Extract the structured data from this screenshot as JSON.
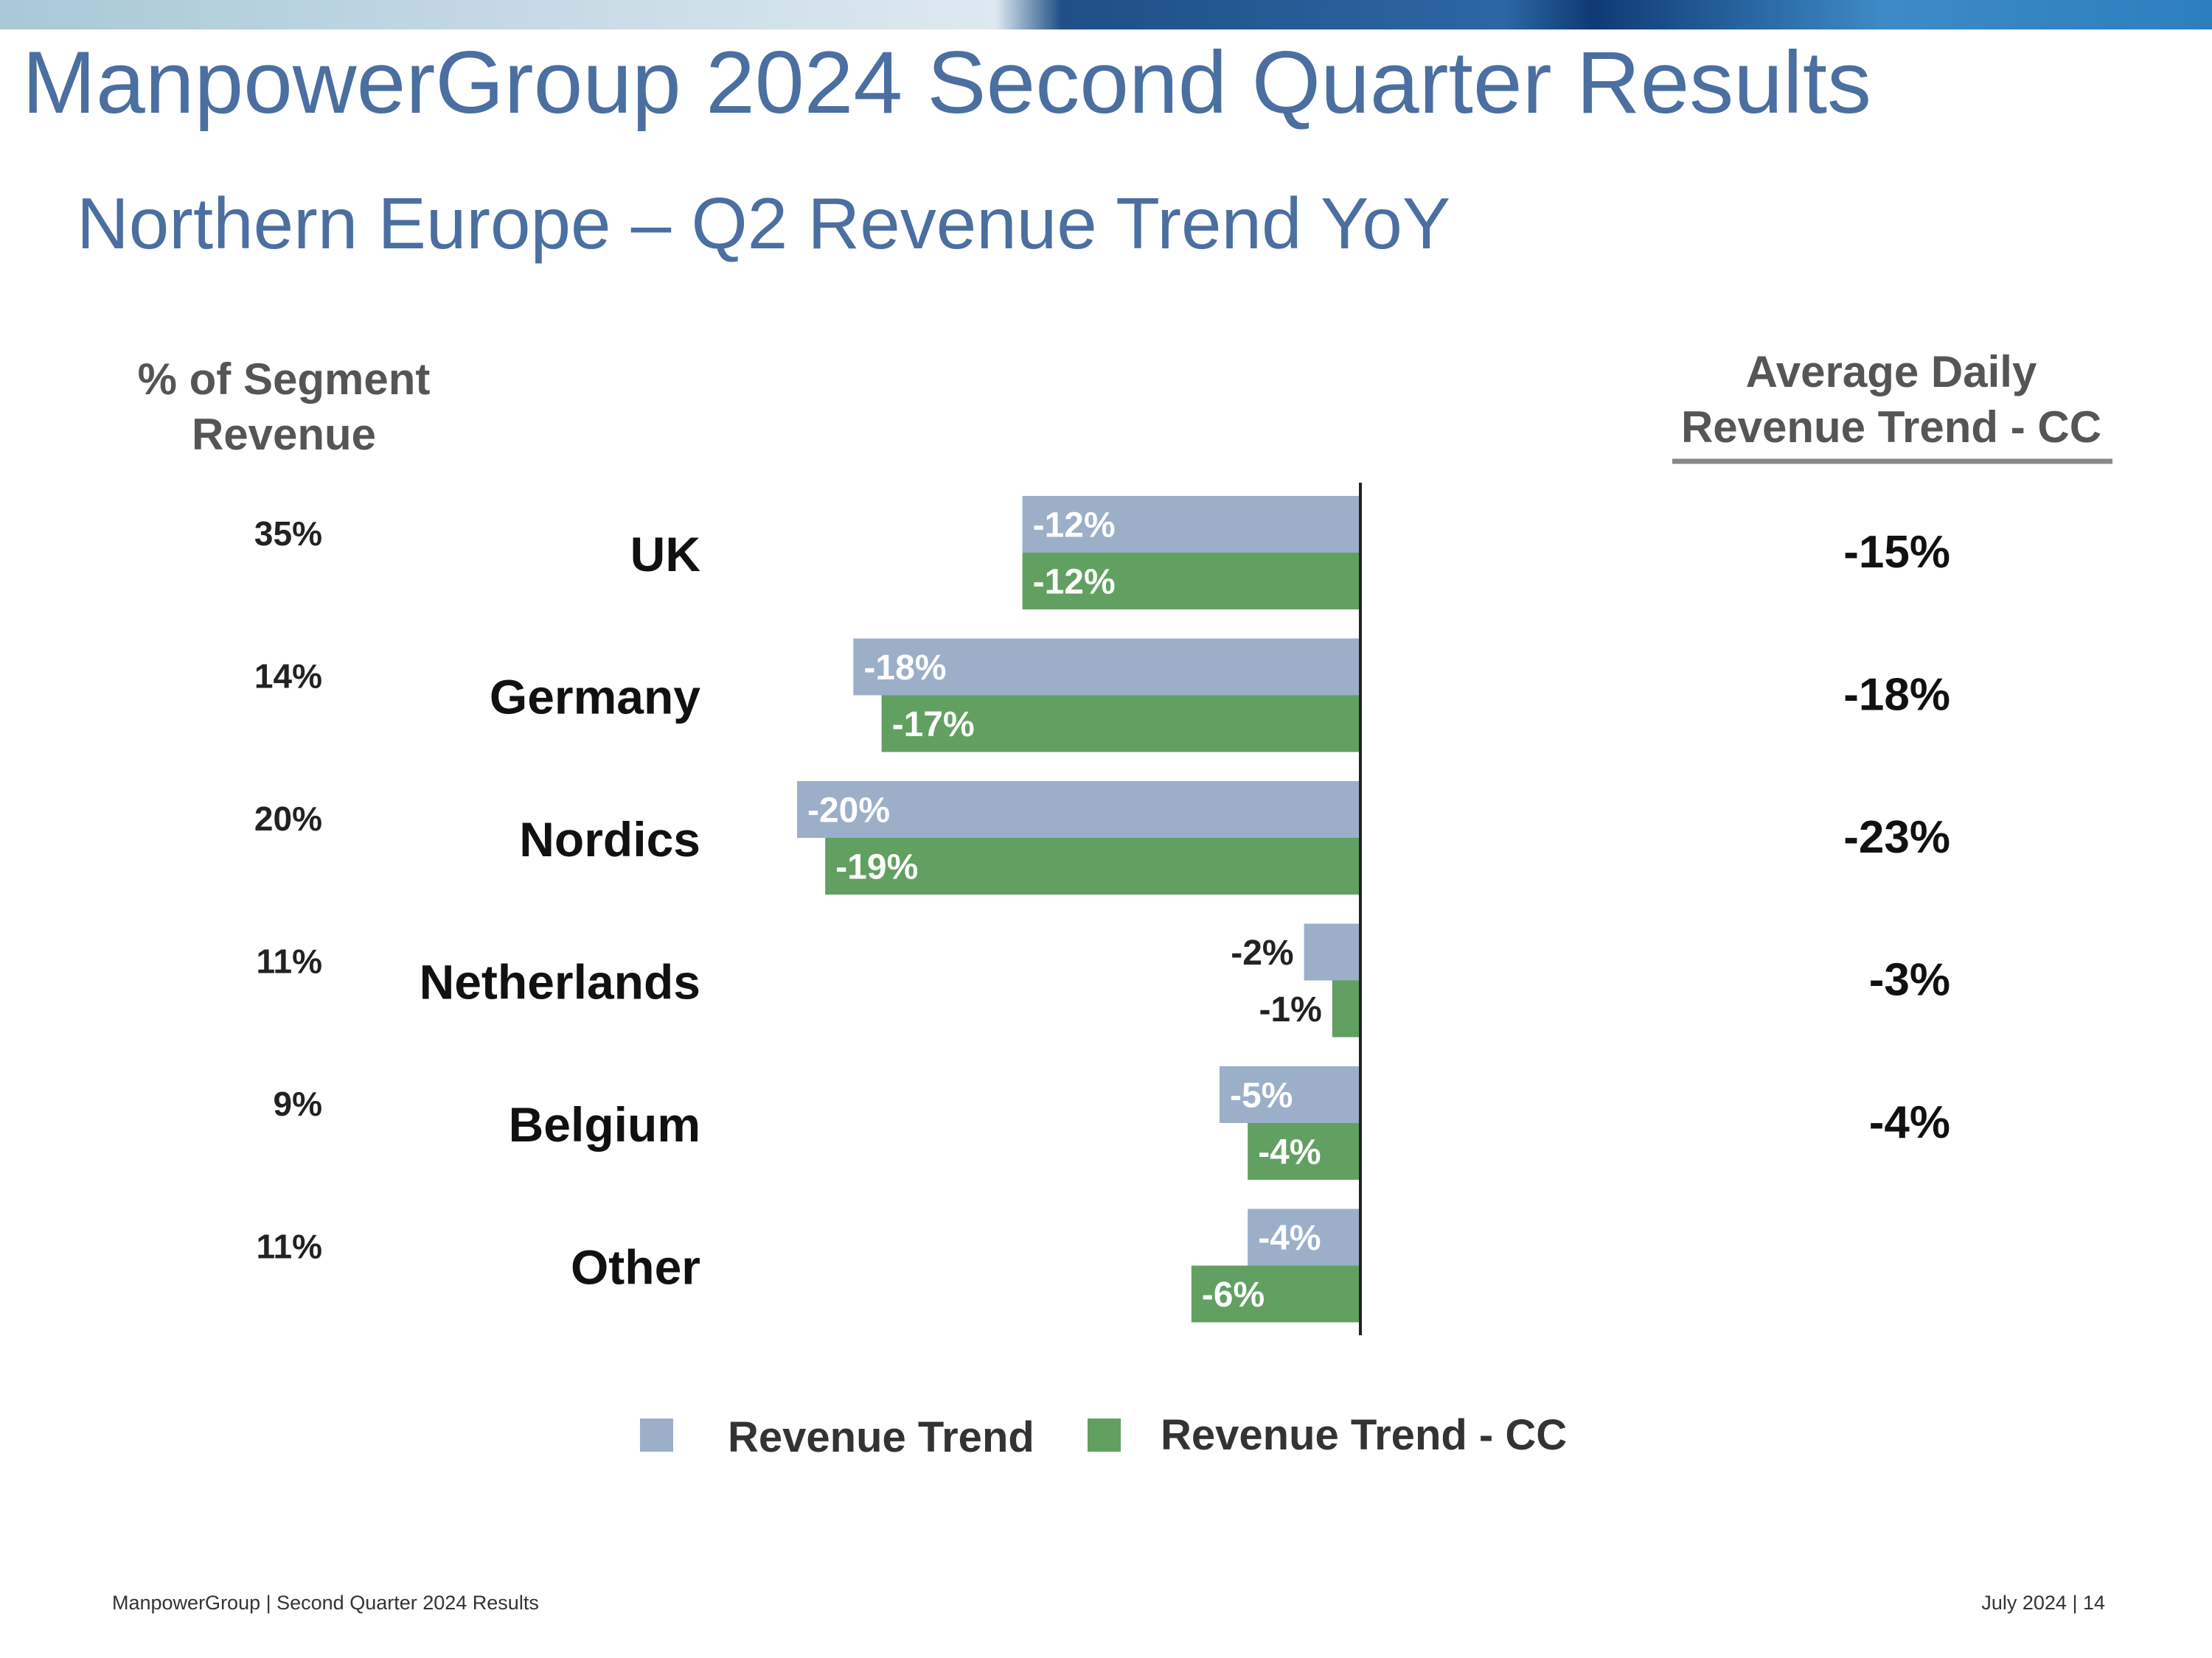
{
  "header": {
    "main_title": "ManpowerGroup 2024 Second Quarter Results",
    "subtitle": "Northern Europe – Q2 Revenue Trend YoY"
  },
  "colors": {
    "title_blue": "#4a6fa0",
    "revenue_trend": "#9bafc9",
    "revenue_trend_cc": "#61a060"
  },
  "chart_data": {
    "type": "bar",
    "orientation": "horizontal",
    "categories": [
      "UK",
      "Germany",
      "Nordics",
      "Netherlands",
      "Belgium",
      "Other"
    ],
    "series": [
      {
        "name": "Revenue Trend",
        "values": [
          -12,
          -18,
          -20,
          -2,
          -5,
          -4
        ],
        "labels": [
          "-12%",
          "-18%",
          "-20%",
          "-2%",
          "-5%",
          "-4%"
        ]
      },
      {
        "name": "Revenue Trend - CC",
        "values": [
          -12,
          -17,
          -19,
          -1,
          -4,
          -6
        ],
        "labels": [
          "-12%",
          "-17%",
          "-19%",
          "-1%",
          "-4%",
          "-6%"
        ]
      }
    ],
    "unit": "%",
    "xlim": [
      -20,
      0
    ],
    "segment_revenue_header": [
      "% of Segment",
      "Revenue"
    ],
    "segment_revenue_pct": [
      "35%",
      "14%",
      "20%",
      "11%",
      "9%",
      "11%"
    ],
    "avg_daily_header": [
      "Average Daily",
      "Revenue Trend - CC"
    ],
    "avg_daily_revenue_trend_cc": [
      "-15%",
      "-18%",
      "-23%",
      "-3%",
      "-4%",
      ""
    ],
    "legend_position": "bottom",
    "grid": false
  },
  "footer": {
    "left": "ManpowerGroup  |  Second Quarter 2024 Results",
    "right": "July 2024   |   14"
  }
}
